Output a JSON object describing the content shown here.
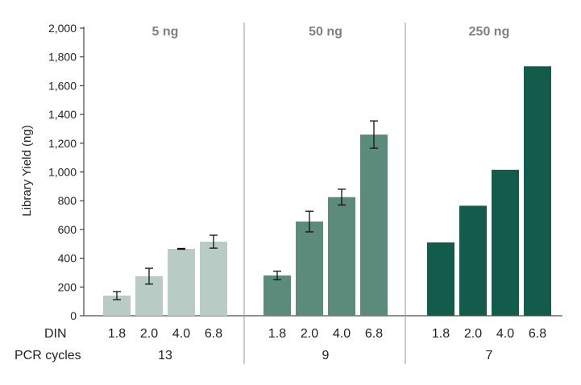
{
  "chart_data": {
    "type": "bar",
    "ylabel": "Library Yield (ng)",
    "ylim": [
      0,
      2000
    ],
    "y_ticks": [
      "0",
      "200",
      "400",
      "600",
      "800",
      "1,000",
      "1,200",
      "1,400",
      "1,600",
      "1,800",
      "2,000"
    ],
    "y_tick_values": [
      0,
      200,
      400,
      600,
      800,
      1000,
      1200,
      1400,
      1600,
      1800,
      2000
    ],
    "din_label": "DIN",
    "pcr_label": "PCR cycles",
    "grid": false,
    "groups": [
      {
        "name": "5 ng",
        "color": "#b8ccc5",
        "pcr_cycles": "13",
        "categories": [
          "1.8",
          "2.0",
          "4.0",
          "6.8"
        ],
        "values": [
          140,
          275,
          465,
          515
        ],
        "errors": [
          28,
          55,
          3,
          45
        ]
      },
      {
        "name": "50 ng",
        "color": "#5b8b7a",
        "pcr_cycles": "9",
        "categories": [
          "1.8",
          "2.0",
          "4.0",
          "6.8"
        ],
        "values": [
          280,
          655,
          825,
          1260
        ],
        "errors": [
          30,
          72,
          55,
          95
        ]
      },
      {
        "name": "250 ng",
        "color": "#135b4b",
        "pcr_cycles": "7",
        "categories": [
          "1.8",
          "2.0",
          "4.0",
          "6.8"
        ],
        "values": [
          510,
          765,
          1015,
          1735
        ],
        "errors": [
          null,
          null,
          null,
          null
        ]
      }
    ]
  }
}
